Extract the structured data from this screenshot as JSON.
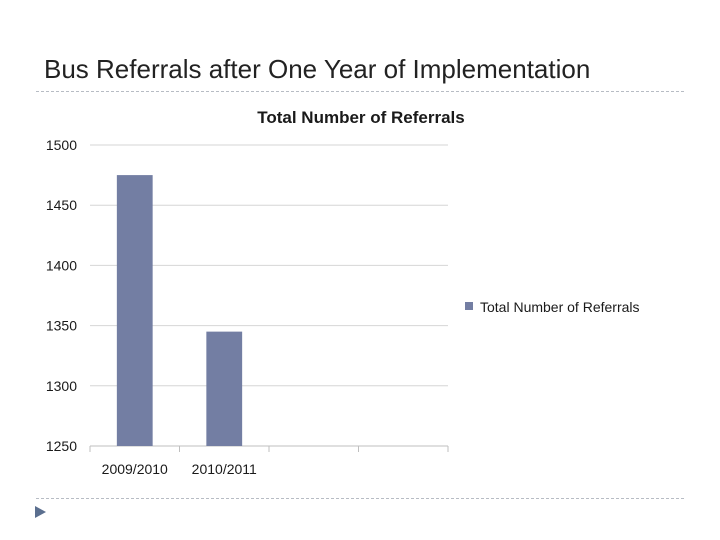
{
  "slide": {
    "title": "Bus Referrals after One Year of Implementation"
  },
  "chart_data": {
    "type": "bar",
    "title": "Total Number of Referrals",
    "categories": [
      "2009/2010",
      "2010/2011",
      "",
      ""
    ],
    "series": [
      {
        "name": "Total Number of Referrals",
        "values": [
          1475,
          1345,
          null,
          null
        ]
      }
    ],
    "ylim": [
      1250,
      1500
    ],
    "yticks": [
      "1250",
      "1300",
      "1350",
      "1400",
      "1450",
      "1500"
    ],
    "xlabel": "",
    "ylabel": "",
    "grid": true,
    "legend_position": "right",
    "bar_color": "#737ea3",
    "grid_color": "#d6d6d6"
  },
  "icons": {
    "bullet": "triangle-bullet-icon"
  }
}
